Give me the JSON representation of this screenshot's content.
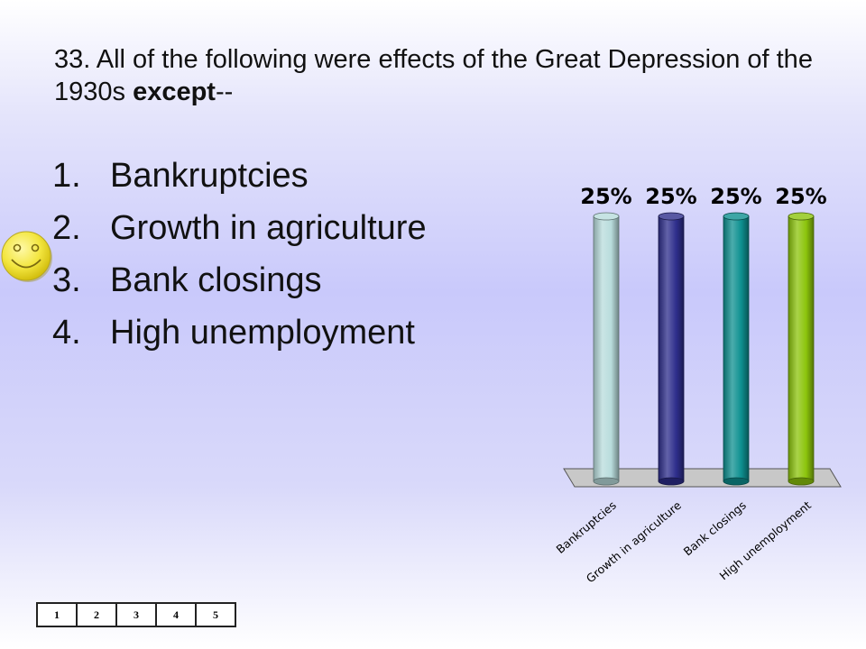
{
  "question": {
    "text": "33. All of the following were effects of the Great Depression of the 1930s ",
    "emphasis": "except",
    "tail": "--"
  },
  "answers": [
    {
      "num": "1.",
      "label": "Bankruptcies"
    },
    {
      "num": "2.",
      "label": "Growth in agriculture"
    },
    {
      "num": "3.",
      "label": "Bank closings"
    },
    {
      "num": "4.",
      "label": "High unemployment"
    }
  ],
  "correct_marker_icon": "smiley-face-icon",
  "keypad": [
    "1",
    "2",
    "3",
    "4",
    "5"
  ],
  "chart_data": {
    "type": "bar",
    "categories": [
      "Bankruptcies",
      "Growth in agriculture",
      "Bank closings",
      "High unemployment"
    ],
    "values": [
      25,
      25,
      25,
      25
    ],
    "data_labels": [
      "25%",
      "25%",
      "25%",
      "25%"
    ],
    "colors": [
      "#b8dcdc",
      "#2e2e8c",
      "#0e9090",
      "#8cc40c"
    ],
    "ylim": [
      0,
      25
    ],
    "grid": false,
    "legend": "none"
  }
}
